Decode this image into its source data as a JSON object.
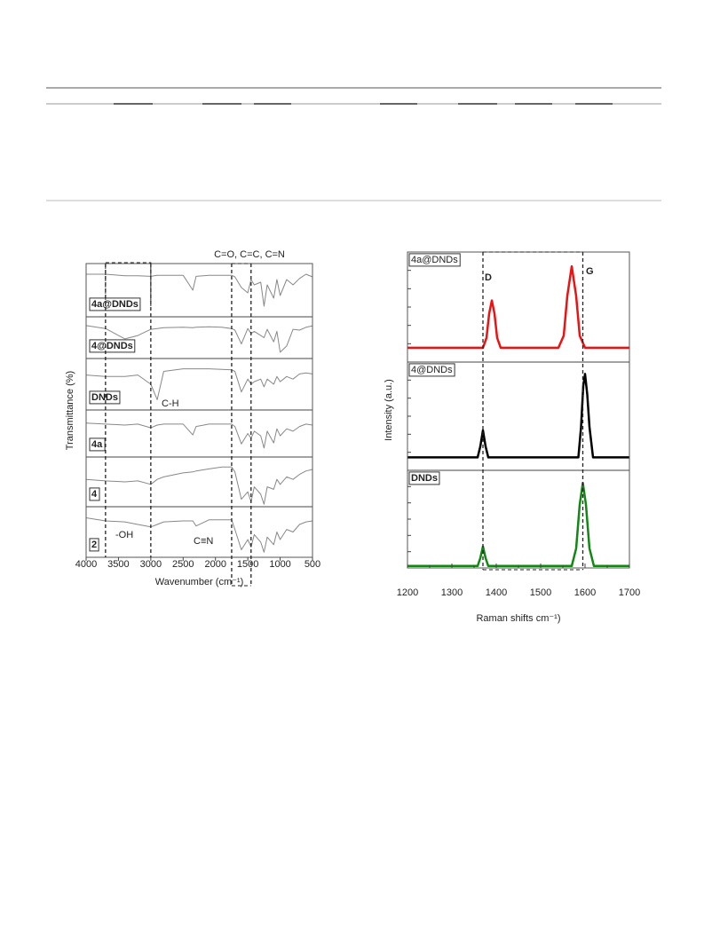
{
  "chart_data": [
    {
      "type": "line",
      "xlabel": "Wavenumber (cm⁻¹)",
      "ylabel": "Transmittance (%)",
      "xlim": [
        4000,
        500
      ],
      "xticks": [
        4000,
        3500,
        3000,
        2500,
        2000,
        1500,
        1000,
        500
      ],
      "ylim": [
        0,
        100
      ],
      "reference_lines": [
        3700,
        3000,
        1750,
        1450
      ],
      "annotations": [
        "C=O, C=C, C=N",
        "C-H",
        "-OH",
        "C≡N"
      ],
      "x": [
        4000,
        3700,
        3400,
        3200,
        3000,
        2900,
        2800,
        2500,
        2350,
        2300,
        2100,
        1900,
        1750,
        1700,
        1600,
        1500,
        1450,
        1400,
        1300,
        1250,
        1200,
        1100,
        1050,
        1000,
        900,
        800,
        700,
        600,
        500
      ],
      "series": [
        {
          "name": "4a@DNDs",
          "color": "#888888",
          "values": [
            80,
            80,
            77,
            77,
            76,
            78,
            78,
            78,
            50,
            76,
            78,
            78,
            78,
            75,
            55,
            45,
            70,
            60,
            65,
            20,
            60,
            35,
            70,
            40,
            70,
            60,
            72,
            80,
            75
          ]
        },
        {
          "name": "4@DNDs",
          "color": "#888888",
          "values": [
            79,
            72,
            47,
            55,
            70,
            72,
            74,
            75,
            74,
            75,
            76,
            75,
            72,
            68,
            35,
            72,
            60,
            65,
            55,
            50,
            70,
            40,
            65,
            15,
            30,
            70,
            68,
            75,
            78
          ]
        },
        {
          "name": "DNDs",
          "color": "#888888",
          "values": [
            68,
            65,
            65,
            68,
            50,
            20,
            75,
            80,
            80,
            80,
            80,
            79,
            78,
            75,
            35,
            60,
            50,
            55,
            60,
            45,
            60,
            50,
            65,
            55,
            65,
            60,
            70,
            72,
            70
          ]
        },
        {
          "name": "4a",
          "color": "#888888",
          "values": [
            72,
            70,
            68,
            70,
            62,
            68,
            70,
            70,
            47,
            65,
            70,
            70,
            70,
            65,
            28,
            50,
            40,
            55,
            45,
            19,
            55,
            30,
            60,
            45,
            60,
            55,
            65,
            70,
            68
          ]
        },
        {
          "name": "4",
          "color": "#888888",
          "values": [
            55,
            52,
            50,
            52,
            45,
            55,
            60,
            68,
            70,
            72,
            76,
            80,
            80,
            70,
            15,
            30,
            10,
            40,
            25,
            5,
            40,
            35,
            55,
            45,
            60,
            55,
            65,
            72,
            75
          ]
        },
        {
          "name": "2",
          "color": "#888888",
          "values": [
            78,
            72,
            70,
            65,
            60,
            65,
            70,
            72,
            72,
            62,
            74,
            74,
            74,
            55,
            15,
            35,
            20,
            45,
            30,
            10,
            40,
            25,
            50,
            35,
            55,
            50,
            65,
            70,
            72
          ]
        }
      ]
    },
    {
      "type": "line",
      "xlabel": "Raman shifts cm⁻¹)",
      "ylabel": "Intensity (a.u.)",
      "xlim": [
        1200,
        1700
      ],
      "xticks": [
        1200,
        1300,
        1400,
        1500,
        1600,
        1700
      ],
      "ylim": [
        0,
        100
      ],
      "reference_lines": [
        1370,
        1595
      ],
      "annotations": [
        "D",
        "G"
      ],
      "series": [
        {
          "name": "4a@DNDs",
          "color": "#ee1111",
          "x": [
            1200,
            1370,
            1378,
            1384,
            1390,
            1396,
            1402,
            1410,
            1540,
            1552,
            1560,
            1570,
            1580,
            1588,
            1600,
            1700
          ],
          "values": [
            13,
            13,
            22,
            44,
            56,
            44,
            22,
            13,
            13,
            24,
            60,
            87,
            60,
            24,
            13,
            13
          ]
        },
        {
          "name": "4@DNDs",
          "color": "#000000",
          "x": [
            1200,
            1358,
            1364,
            1370,
            1376,
            1382,
            1585,
            1591,
            1596,
            1600,
            1605,
            1610,
            1618,
            1700
          ],
          "values": [
            12,
            12,
            22,
            37,
            22,
            12,
            12,
            40,
            78,
            89,
            70,
            40,
            12,
            12
          ]
        },
        {
          "name": "DNDs",
          "color": "#118811",
          "x": [
            1200,
            1358,
            1364,
            1370,
            1376,
            1382,
            1570,
            1580,
            1588,
            1595,
            1602,
            1610,
            1620,
            1700
          ],
          "values": [
            2,
            2,
            10,
            22,
            10,
            2,
            2,
            20,
            65,
            87,
            65,
            20,
            2,
            2
          ]
        }
      ]
    }
  ]
}
